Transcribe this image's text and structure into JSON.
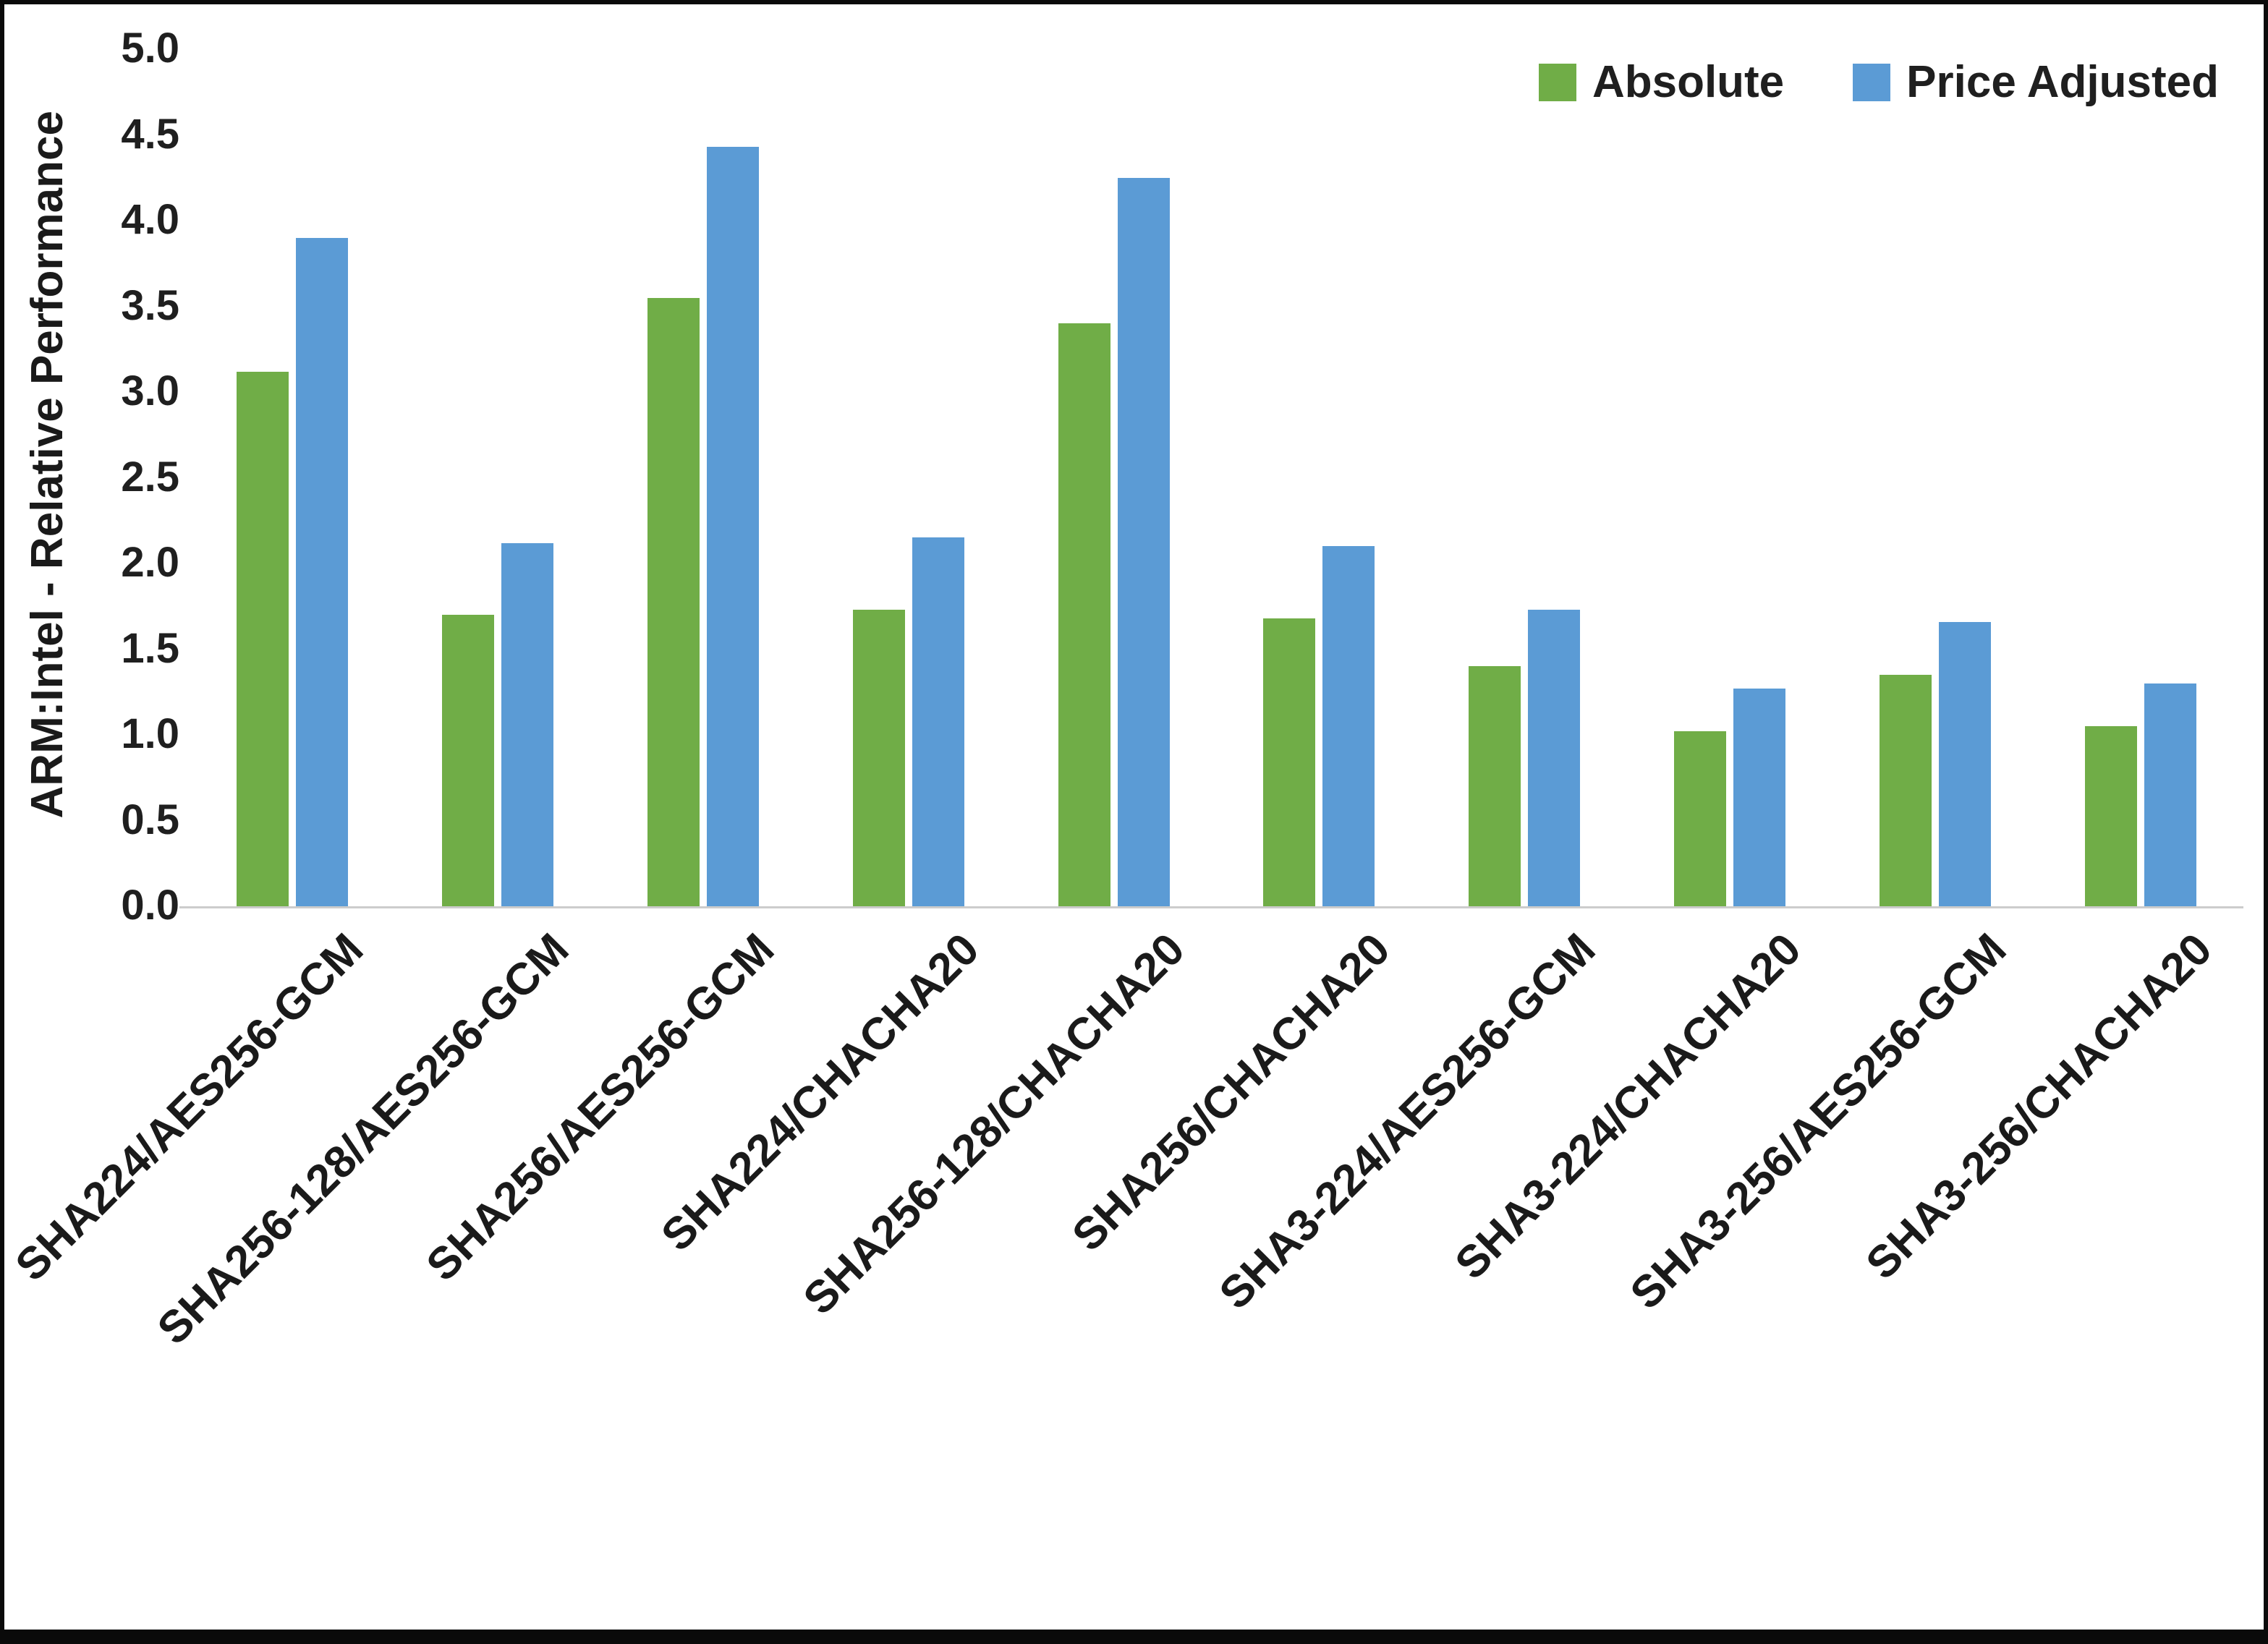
{
  "chart_data": {
    "type": "bar",
    "title": "",
    "ylabel": "ARM:Intel - Relative Performance",
    "xlabel": "",
    "ylim": [
      0,
      5
    ],
    "ytick_step": 0.5,
    "ytick_labels": [
      "0.0",
      "0.5",
      "1.0",
      "1.5",
      "2.0",
      "2.5",
      "3.0",
      "3.5",
      "4.0",
      "4.5",
      "5.0"
    ],
    "grid": false,
    "legend_position": "top-right",
    "categories": [
      "SHA224/AES256-GCM",
      "SHA256-128/AES256-GCM",
      "SHA256/AES256-GCM",
      "SHA224/CHACHA20",
      "SHA256-128/CHACHA20",
      "SHA256/CHACHA20",
      "SHA3-224/AES256-GCM",
      "SHA3-224/CHACHA20",
      "SHA3-256/AES256-GCM",
      "SHA3-256/CHACHA20"
    ],
    "series": [
      {
        "name": "Absolute",
        "color": "#70AD47",
        "values": [
          3.12,
          1.7,
          3.55,
          1.73,
          3.4,
          1.68,
          1.4,
          1.02,
          1.35,
          1.05
        ]
      },
      {
        "name": "Price Adjusted",
        "color": "#5B9BD5",
        "values": [
          3.9,
          2.12,
          4.43,
          2.15,
          4.25,
          2.1,
          1.73,
          1.27,
          1.66,
          1.3
        ]
      }
    ],
    "colors": {
      "axis_line": "#cccccc",
      "text": "#1f1f1f"
    }
  }
}
